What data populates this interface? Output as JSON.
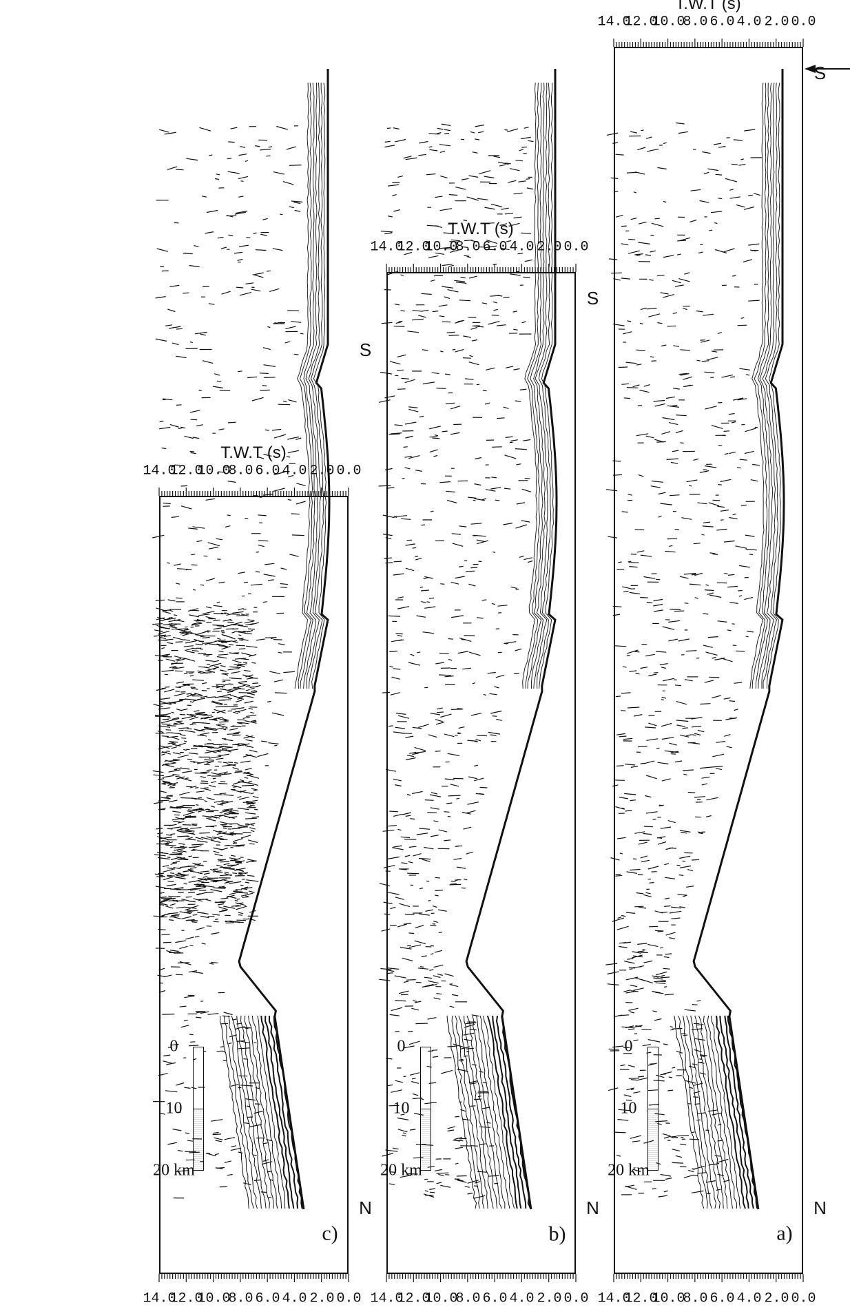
{
  "figure": {
    "ylabel": "T.W.T (s)",
    "ticks": [
      "0.0",
      "2.0",
      "4.0",
      "6.0",
      "8.0",
      "10.0",
      "12.0",
      "14.0"
    ],
    "scale_labels": [
      "0",
      "10",
      "20 km"
    ],
    "panels": [
      {
        "id": "a",
        "letter": "a)",
        "left_dir": "S",
        "right_dir": "N"
      },
      {
        "id": "b",
        "letter": "b)",
        "left_dir": "S",
        "right_dir": "N"
      },
      {
        "id": "c",
        "letter": "c)",
        "left_dir": "S",
        "right_dir": "N"
      }
    ]
  }
}
